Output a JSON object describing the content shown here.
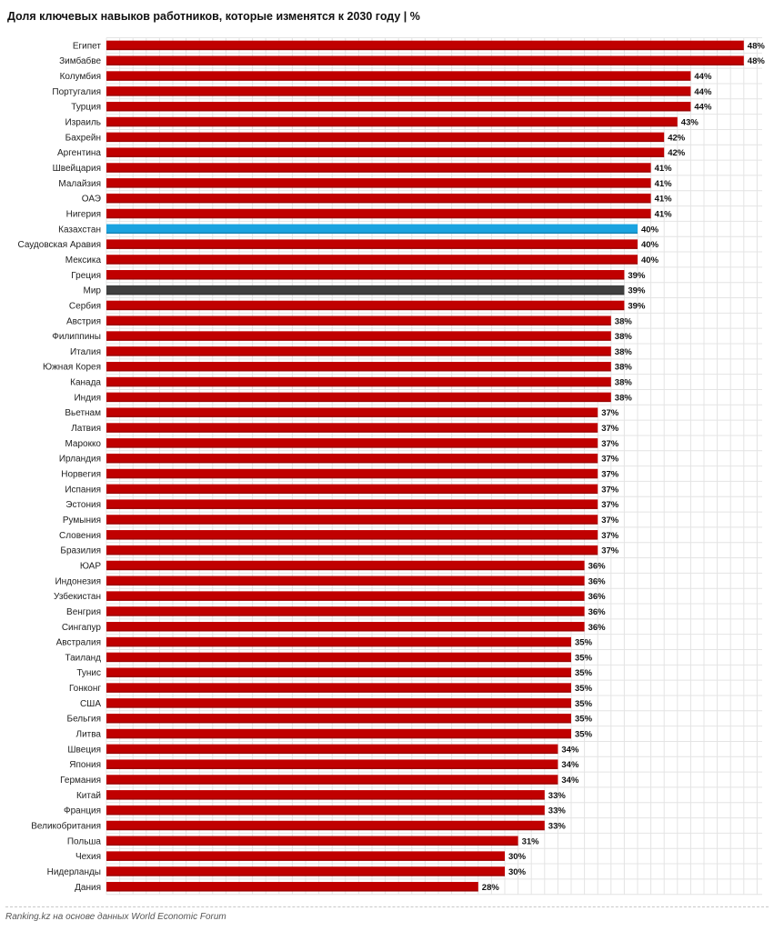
{
  "title": "Доля ключевых навыков работников, которые изменятся к 2030 году | %",
  "source": "Ranking.kz на основе данных World Economic Forum",
  "colors": {
    "default_bar": "#c00000",
    "highlight_kazakhstan": "#1aa3e0",
    "highlight_world": "#404040",
    "grid": "#e4e4e4"
  },
  "chart_data": {
    "type": "bar",
    "orientation": "horizontal",
    "title": "Доля ключевых навыков работников, которые изменятся к 2030 году | %",
    "xlim": [
      0,
      50
    ],
    "grid": true,
    "value_suffix": "%",
    "categories": [
      "Египет",
      "Зимбабве",
      "Колумбия",
      "Португалия",
      "Турция",
      "Израиль",
      "Бахрейн",
      "Аргентина",
      "Швейцария",
      "Малайзия",
      "ОАЭ",
      "Нигерия",
      "Казахстан",
      "Саудовская Аравия",
      "Мексика",
      "Греция",
      "Мир",
      "Сербия",
      "Австрия",
      "Филиппины",
      "Италия",
      "Южная Корея",
      "Канада",
      "Индия",
      "Вьетнам",
      "Латвия",
      "Марокко",
      "Ирландия",
      "Норвегия",
      "Испания",
      "Эстония",
      "Румыния",
      "Словения",
      "Бразилия",
      "ЮАР",
      "Индонезия",
      "Узбекистан",
      "Венгрия",
      "Сингапур",
      "Австралия",
      "Таиланд",
      "Тунис",
      "Гонконг",
      "США",
      "Бельгия",
      "Литва",
      "Швеция",
      "Япония",
      "Германия",
      "Китай",
      "Франция",
      "Великобритания",
      "Польша",
      "Чехия",
      "Нидерланды",
      "Дания"
    ],
    "values": [
      48,
      48,
      44,
      44,
      44,
      43,
      42,
      42,
      41,
      41,
      41,
      41,
      40,
      40,
      40,
      39,
      39,
      39,
      38,
      38,
      38,
      38,
      38,
      38,
      37,
      37,
      37,
      37,
      37,
      37,
      37,
      37,
      37,
      37,
      36,
      36,
      36,
      36,
      36,
      35,
      35,
      35,
      35,
      35,
      35,
      35,
      34,
      34,
      34,
      33,
      33,
      33,
      31,
      30,
      30,
      28
    ],
    "highlight": {
      "Казахстан": "#1aa3e0",
      "Мир": "#404040"
    }
  }
}
